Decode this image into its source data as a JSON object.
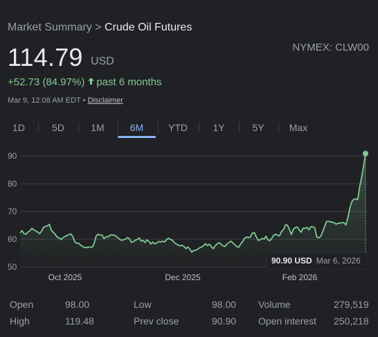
{
  "breadcrumb": {
    "parent": "Market Summary",
    "separator": ">",
    "current": "Crude Oil Futures"
  },
  "quote": {
    "price": "114.79",
    "currency": "USD",
    "ticker": "NYMEX: CLW00",
    "change": "+52.73 (84.97%)",
    "period": "past 6 months",
    "timestamp": "Mar 9, 12:08 AM EDT",
    "meta_sep": "•",
    "disclaimer": "Disclaimer"
  },
  "tabs": [
    {
      "label": "1D"
    },
    {
      "label": "5D"
    },
    {
      "label": "1M"
    },
    {
      "label": "6M",
      "active": true
    },
    {
      "label": "YTD"
    },
    {
      "label": "1Y"
    },
    {
      "label": "5Y"
    },
    {
      "label": "Max"
    }
  ],
  "tooltip": {
    "value": "90.90 USD",
    "date": "Mar 6, 2026"
  },
  "stats": [
    {
      "label": "Open",
      "value": "98.00"
    },
    {
      "label": "High",
      "value": "119.48"
    },
    {
      "label": "Low",
      "value": "98.00"
    },
    {
      "label": "Prev close",
      "value": "90.90"
    },
    {
      "label": "Volume",
      "value": "279,519"
    },
    {
      "label": "Open interest",
      "value": "250,218"
    }
  ],
  "colors": {
    "line": "#81c995",
    "active_tab": "#8ab4f8",
    "background": "#202124"
  },
  "chart_data": {
    "type": "area",
    "ylim": [
      50,
      92
    ],
    "yticks": [
      90,
      80,
      70,
      60,
      50
    ],
    "xticks": [
      "Oct 2025",
      "Dec 2025",
      "Feb 2026"
    ],
    "grid": true,
    "series": [
      {
        "values": [
          62.3,
          63.1,
          62.0,
          61.8,
          62.6,
          63.0,
          63.9,
          63.4,
          63.0,
          62.6,
          62.0,
          62.9,
          64.3,
          64.6,
          64.8,
          65.4,
          63.3,
          62.5,
          61.8,
          60.8,
          60.5,
          59.9,
          60.6,
          61.0,
          61.3,
          61.7,
          61.9,
          61.0,
          59.1,
          58.5,
          58.6,
          57.9,
          57.4,
          57.0,
          57.0,
          57.2,
          57.1,
          57.2,
          58.6,
          61.2,
          61.8,
          61.5,
          61.5,
          60.2,
          60.9,
          60.8,
          61.4,
          61.6,
          61.5,
          61.2,
          60.6,
          60.0,
          59.6,
          59.8,
          60.0,
          60.6,
          60.2,
          58.9,
          59.1,
          59.6,
          59.9,
          60.5,
          59.3,
          59.6,
          58.8,
          59.8,
          59.2,
          58.3,
          59.0,
          58.3,
          58.6,
          59.2,
          59.0,
          59.3,
          59.0,
          59.8,
          60.4,
          59.9,
          59.7,
          58.8,
          58.3,
          57.9,
          57.6,
          57.8,
          57.4,
          56.6,
          57.2,
          56.4,
          55.3,
          56.0,
          56.0,
          56.4,
          56.9,
          57.2,
          57.6,
          58.4,
          57.7,
          58.2,
          57.3,
          56.6,
          57.7,
          58.3,
          58.8,
          58.2,
          57.6,
          57.4,
          58.3,
          58.8,
          59.3,
          58.7,
          58.0,
          57.4,
          57.1,
          58.3,
          59.1,
          60.3,
          60.8,
          60.6,
          60.8,
          62.2,
          62.4,
          60.9,
          59.6,
          59.8,
          60.3,
          60.0,
          61.1,
          59.8,
          59.5,
          60.4,
          61.5,
          61.8,
          61.4,
          61.3,
          62.8,
          63.5,
          65.2,
          65.1,
          63.5,
          61.7,
          63.6,
          64.2,
          64.4,
          63.4,
          62.5,
          64.0,
          63.9,
          64.3,
          63.4,
          64.5,
          64.5,
          64.1,
          60.8,
          60.5,
          61.0,
          62.6,
          64.5,
          66.4,
          66.5,
          66.2,
          66.2,
          65.9,
          65.4,
          65.8,
          65.8,
          66.0,
          65.9,
          65.2,
          67.9,
          71.4,
          73.6,
          74.4,
          74.5,
          74.3,
          79.0,
          82.3,
          86.5,
          90.9
        ]
      }
    ]
  }
}
